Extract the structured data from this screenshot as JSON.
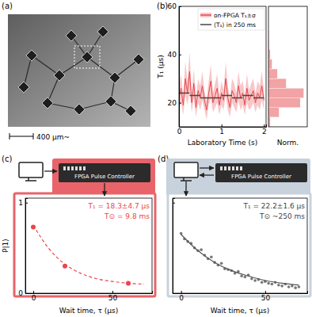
{
  "image_a": {
    "panel_label": "(a)",
    "scale_bar": "400 μm~"
  },
  "chart_data": [
    {
      "panel_label": "(b)",
      "type": "line",
      "x_label": "Laboratory Time (s)",
      "y_label": "T₁ (μs)",
      "xlim": [
        0,
        2.05
      ],
      "xticks": [
        0,
        1,
        2
      ],
      "ylim": [
        10,
        60
      ],
      "yticks": [
        20,
        40,
        60
      ],
      "legend": "upper right",
      "series": [
        {
          "name": "on-FPGA T₁±σ",
          "color": "#e8474c",
          "x": [
            0,
            0.05,
            0.1,
            0.15,
            0.2,
            0.25,
            0.3,
            0.35,
            0.4,
            0.45,
            0.5,
            0.55,
            0.6,
            0.65,
            0.7,
            0.75,
            0.8,
            0.85,
            0.9,
            0.95,
            1.0,
            1.05,
            1.1,
            1.15,
            1.2,
            1.25,
            1.3,
            1.35,
            1.4,
            1.45,
            1.5,
            1.55,
            1.6,
            1.65,
            1.7,
            1.75,
            1.8,
            1.85,
            1.9,
            1.95,
            2.0
          ],
          "values": [
            22,
            26,
            19,
            30,
            24,
            33,
            20,
            28,
            18,
            25,
            22,
            27,
            21,
            17,
            24,
            29,
            20,
            23,
            26,
            19,
            24,
            21,
            30,
            22,
            18,
            25,
            23,
            20,
            27,
            22,
            24,
            19,
            26,
            21,
            23,
            25,
            20,
            24,
            22,
            27,
            21
          ],
          "errors": [
            5,
            6,
            4,
            7,
            5,
            8,
            4,
            6,
            4,
            5,
            5,
            6,
            4,
            4,
            5,
            7,
            4,
            5,
            6,
            4,
            5,
            4,
            7,
            5,
            4,
            5,
            5,
            4,
            6,
            5,
            5,
            4,
            6,
            4,
            5,
            5,
            4,
            5,
            5,
            6,
            4
          ]
        },
        {
          "name": "⟨T₁⟩ in 250 ms",
          "color": "#444444",
          "type": "step",
          "bins": [
            0,
            0.25,
            0.5,
            0.75,
            1.0,
            1.25,
            1.5,
            1.75,
            2.0
          ],
          "values": [
            24,
            23,
            22,
            22,
            23,
            22,
            23,
            22
          ]
        }
      ]
    },
    {
      "type": "histogram",
      "orientation": "horizontal",
      "x_label": "Norm.",
      "color": "#f2a3a5",
      "xlim": [
        0,
        1.1
      ],
      "ylim": [
        10,
        60
      ],
      "tick_labels": false,
      "bins": [
        10,
        14,
        18,
        22,
        26,
        30,
        34,
        38,
        42,
        46,
        50
      ],
      "counts": [
        0.05,
        0.3,
        0.9,
        1.0,
        0.5,
        0.25,
        0.1,
        0.05,
        0.02,
        0.01
      ]
    },
    {
      "panel_label": "(c)",
      "type": "scatter",
      "diagram_label": "FPGA Pulse Controller",
      "x_label": "Wait time, τ (μs)",
      "y_label": "P|1⟩",
      "xlim": [
        -5,
        75
      ],
      "xticks": [
        0,
        50
      ],
      "ylim": [
        0,
        1.05
      ],
      "yticks": [
        0,
        1
      ],
      "annotations": [
        "T₁ = 18.3±4.7 μs",
        "T⊙ = 9.8 ms"
      ],
      "series": [
        {
          "type": "scatter",
          "marker": "circle",
          "color": "#e8474c",
          "x": [
            0,
            20,
            60
          ],
          "values": [
            0.73,
            0.3,
            0.11
          ]
        },
        {
          "type": "line",
          "line_style": "dashed",
          "color": "#e8474c",
          "x": [
            0,
            10,
            20,
            30,
            40,
            50,
            60,
            70
          ],
          "values": [
            0.75,
            0.49,
            0.32,
            0.22,
            0.16,
            0.13,
            0.11,
            0.1
          ]
        }
      ]
    },
    {
      "panel_label": "(d)",
      "type": "scatter",
      "diagram_label": "FPGA Pulse Controller",
      "x_label": "Wait time, τ (μs)",
      "tick_labels": "x",
      "xlim": [
        -5,
        75
      ],
      "xticks": [
        0,
        50
      ],
      "ylim": [
        0,
        1.05
      ],
      "yticks": [
        0,
        1
      ],
      "annotations": [
        "T₁ = 22.2±1.6 μs",
        "T⊙ ~250 ms"
      ],
      "series": [
        {
          "type": "scatter",
          "marker": "circle",
          "color": "#777777",
          "x": [
            0,
            2,
            4,
            6,
            8,
            10,
            12,
            14,
            16,
            18,
            20,
            22,
            24,
            26,
            28,
            30,
            32,
            34,
            36,
            38,
            40,
            42,
            44,
            46,
            48,
            50,
            52,
            54,
            56,
            58,
            60,
            62,
            64,
            66,
            68,
            70
          ],
          "values": [
            0.66,
            0.6,
            0.57,
            0.55,
            0.5,
            0.47,
            0.48,
            0.42,
            0.38,
            0.4,
            0.34,
            0.31,
            0.33,
            0.27,
            0.26,
            0.25,
            0.22,
            0.24,
            0.19,
            0.18,
            0.2,
            0.16,
            0.14,
            0.15,
            0.12,
            0.13,
            0.11,
            0.1,
            0.12,
            0.09,
            0.08,
            0.1,
            0.07,
            0.08,
            0.06,
            0.07
          ]
        },
        {
          "type": "line",
          "line_style": "solid",
          "color": "#555555",
          "x": [
            0,
            10,
            20,
            30,
            40,
            50,
            60,
            70
          ],
          "values": [
            0.65,
            0.47,
            0.34,
            0.25,
            0.19,
            0.14,
            0.11,
            0.09
          ]
        }
      ]
    }
  ]
}
